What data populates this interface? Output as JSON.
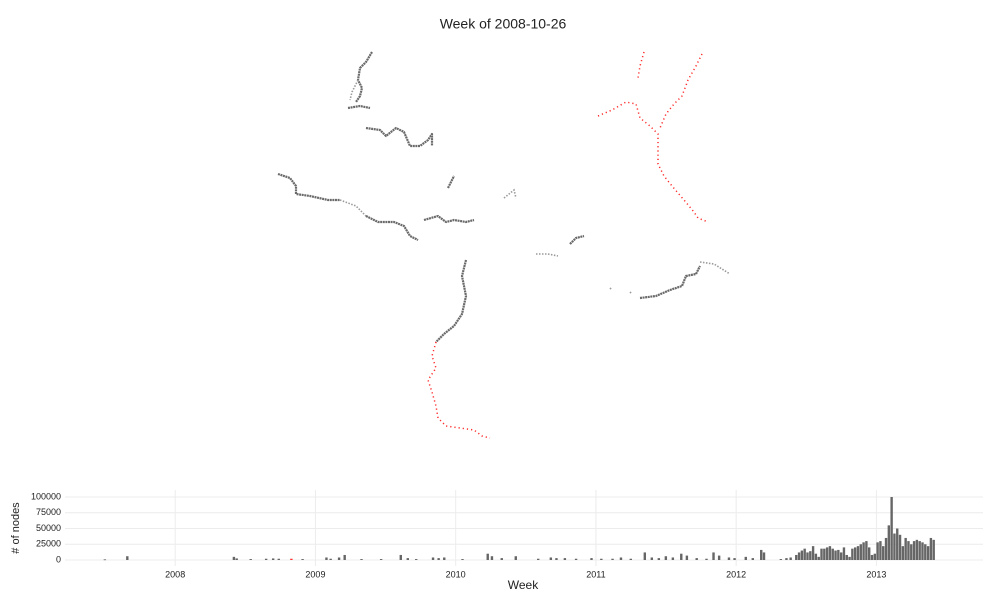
{
  "chart_data": {
    "type": "bar",
    "title": "Week of 2008-10-26",
    "xlabel": "Week",
    "ylabel": "# of nodes",
    "color": "#666666",
    "highlight_index": 8,
    "highlight_color": "#ff3333",
    "xlim": [
      2007.2,
      2013.76
    ],
    "xticks": [
      2008,
      2009,
      2010,
      2011,
      2012,
      2013
    ],
    "ylim": [
      0,
      100000
    ],
    "yticks": [
      0,
      25000,
      50000,
      75000,
      100000
    ],
    "grid": true,
    "bar_width": 0.0192,
    "x": [
      2007.49,
      2007.65,
      2008.41,
      2008.43,
      2008.53,
      2008.64,
      2008.69,
      2008.73,
      2008.82,
      2008.9,
      2009.07,
      2009.1,
      2009.16,
      2009.2,
      2009.32,
      2009.46,
      2009.6,
      2009.65,
      2009.71,
      2009.83,
      2009.87,
      2009.91,
      2010.04,
      2010.22,
      2010.25,
      2010.32,
      2010.42,
      2010.58,
      2010.67,
      2010.71,
      2010.77,
      2010.85,
      2010.96,
      2011.03,
      2011.11,
      2011.17,
      2011.24,
      2011.34,
      2011.39,
      2011.44,
      2011.49,
      2011.54,
      2011.6,
      2011.64,
      2011.71,
      2011.78,
      2011.83,
      2011.87,
      2011.94,
      2011.98,
      2012.06,
      2012.11,
      2012.17,
      2012.19,
      2012.31,
      2012.35,
      2012.38,
      2012.42,
      2012.44,
      2012.46,
      2012.48,
      2012.5,
      2012.52,
      2012.54,
      2012.56,
      2012.58,
      2012.6,
      2012.62,
      2012.64,
      2012.66,
      2012.68,
      2012.7,
      2012.72,
      2012.74,
      2012.76,
      2012.78,
      2012.8,
      2012.82,
      2012.84,
      2012.86,
      2012.88,
      2012.9,
      2012.92,
      2012.94,
      2012.96,
      2012.98,
      2013.0,
      2013.02,
      2013.04,
      2013.06,
      2013.08,
      2013.1,
      2013.12,
      2013.14,
      2013.16,
      2013.18,
      2013.2,
      2013.22,
      2013.24,
      2013.26,
      2013.28,
      2013.3,
      2013.32,
      2013.34,
      2013.36,
      2013.38,
      2013.4
    ],
    "values": [
      1000,
      6000,
      5000,
      2500,
      1500,
      2000,
      2500,
      2000,
      2000,
      1500,
      4000,
      2000,
      4000,
      8000,
      1500,
      1500,
      8000,
      3000,
      1500,
      4000,
      3000,
      4000,
      1500,
      10000,
      6000,
      3000,
      6000,
      2000,
      4000,
      3000,
      3000,
      2000,
      3000,
      2000,
      2000,
      4000,
      2000,
      12000,
      4000,
      3000,
      6000,
      4000,
      10000,
      7000,
      3000,
      2000,
      12000,
      7000,
      4000,
      3000,
      5000,
      3000,
      16000,
      12000,
      1500,
      3000,
      4000,
      8000,
      12000,
      15000,
      18000,
      12000,
      14000,
      22000,
      10000,
      5000,
      18000,
      18000,
      20000,
      22000,
      18000,
      15000,
      16000,
      12000,
      20000,
      8000,
      5000,
      18000,
      20000,
      22000,
      25000,
      28000,
      30000,
      20000,
      8000,
      10000,
      28000,
      30000,
      22000,
      35000,
      55000,
      100000,
      42000,
      50000,
      40000,
      22000,
      35000,
      30000,
      25000,
      30000,
      32000,
      30000,
      28000,
      25000,
      22000,
      35000,
      32000
    ]
  }
}
